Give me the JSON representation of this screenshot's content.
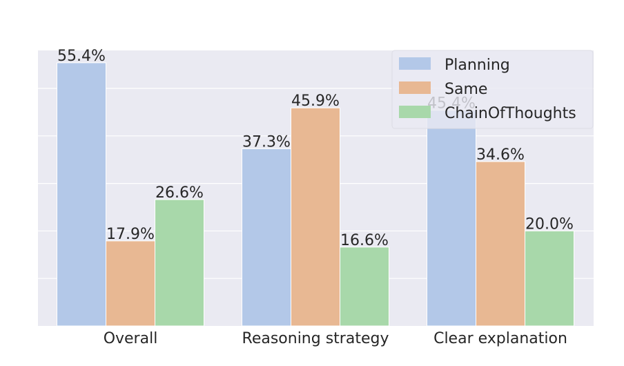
{
  "chart_data": {
    "type": "bar",
    "categories": [
      "Overall",
      "Reasoning strategy",
      "Clear explanation"
    ],
    "series": [
      {
        "name": "Planning",
        "values": [
          55.4,
          37.3,
          45.4
        ],
        "labels": [
          "55.4%",
          "37.3%",
          "45.4%"
        ],
        "color": "#b3c8e8"
      },
      {
        "name": "Same",
        "values": [
          17.9,
          45.9,
          34.6
        ],
        "labels": [
          "17.9%",
          "45.9%",
          "34.6%"
        ],
        "color": "#e8b893"
      },
      {
        "name": "ChainOfThoughts",
        "values": [
          26.6,
          16.6,
          20.0
        ],
        "labels": [
          "26.6%",
          "16.6%",
          "20.0%"
        ],
        "color": "#a8d8aa"
      }
    ],
    "ylim": [
      0,
      58
    ],
    "grid": true,
    "legend_position": "top-right",
    "colors": {
      "background": "#eaeaf2",
      "grid": "#ffffff",
      "text": "#262626"
    }
  }
}
